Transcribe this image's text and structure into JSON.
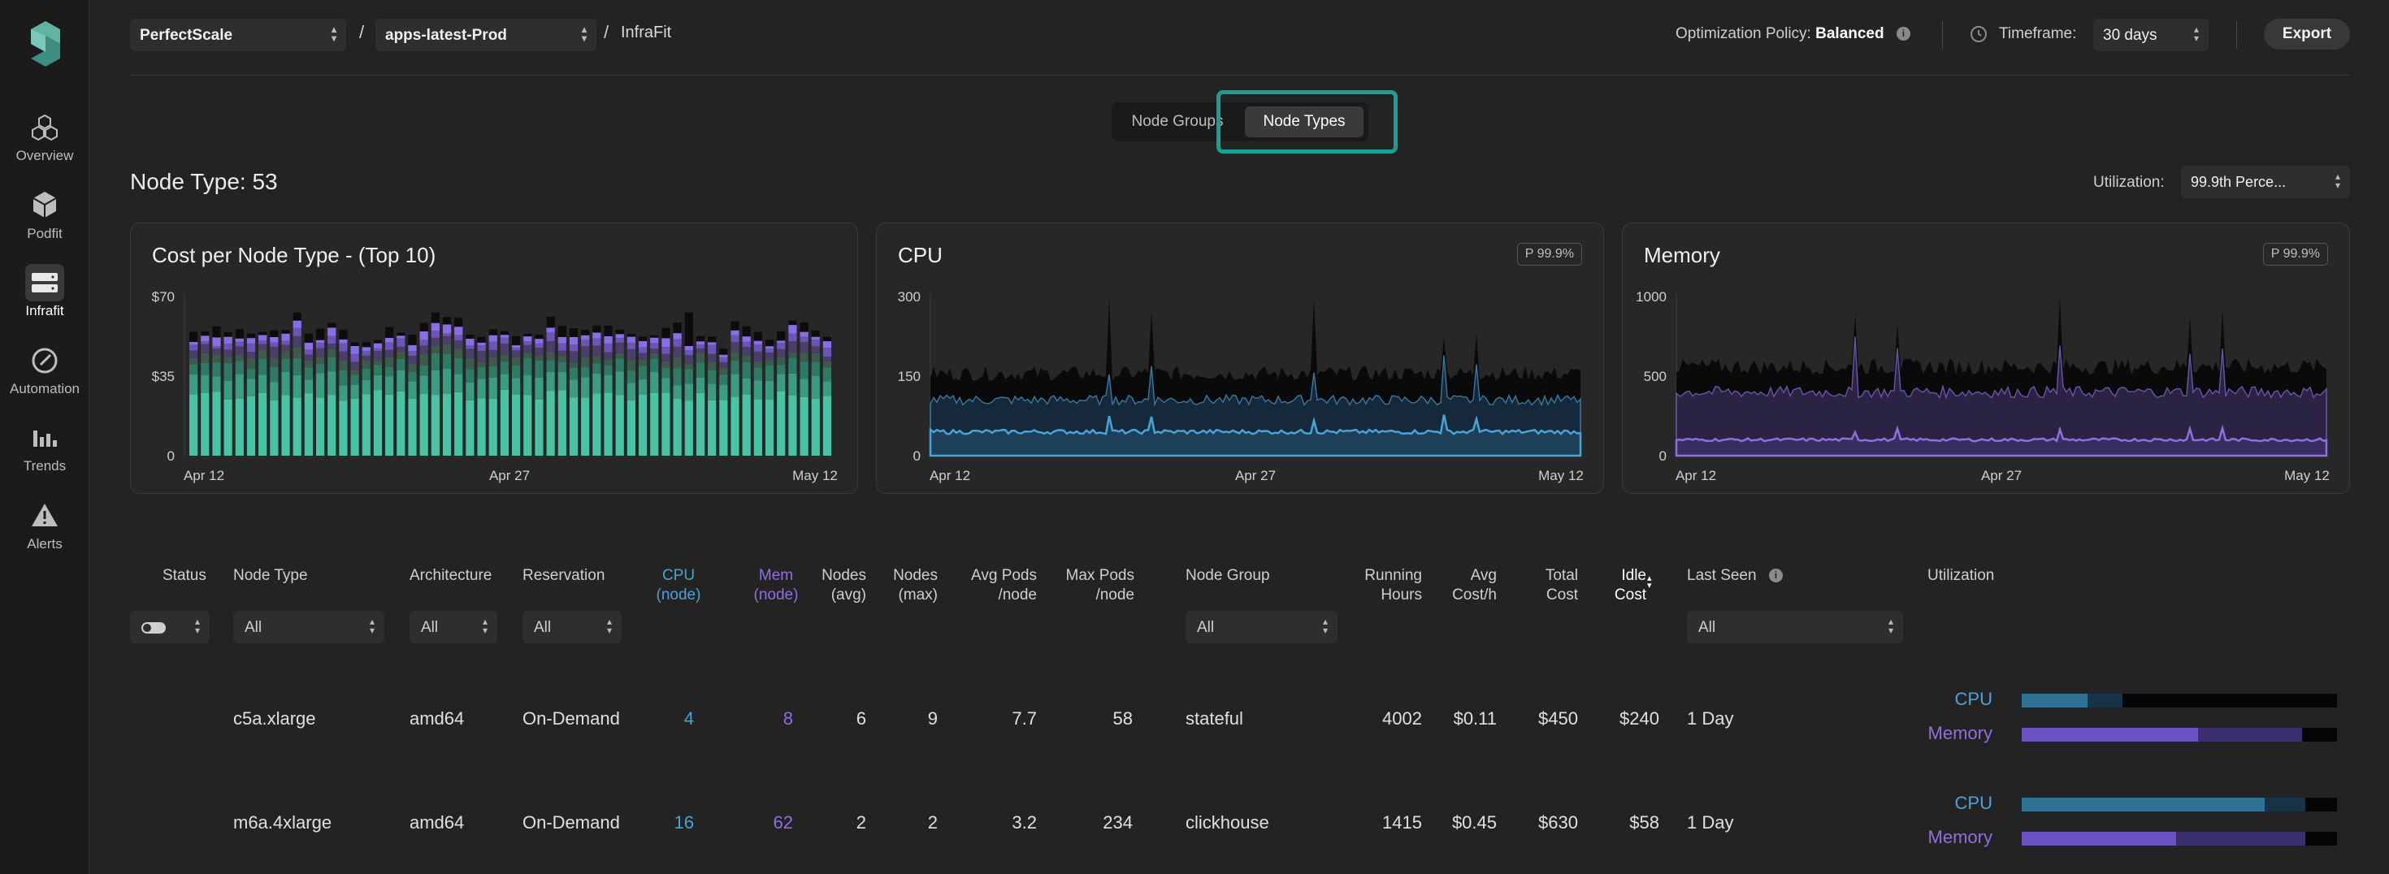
{
  "sidebar": {
    "items": [
      {
        "label": "Overview",
        "icon": "cubes-icon"
      },
      {
        "label": "Podfit",
        "icon": "cube-icon"
      },
      {
        "label": "Infrafit",
        "icon": "server-icon",
        "active": true
      },
      {
        "label": "Automation",
        "icon": "gauge-icon"
      },
      {
        "label": "Trends",
        "icon": "bar-chart-icon"
      },
      {
        "label": "Alerts",
        "icon": "warning-icon"
      }
    ]
  },
  "header": {
    "org": "PerfectScale",
    "cluster": "apps-latest-Prod",
    "separator": "/",
    "page": "InfraFit",
    "policy_label": "Optimization Policy:",
    "policy_value": "Balanced",
    "timeframe_label": "Timeframe:",
    "timeframe_value": "30 days",
    "export_label": "Export"
  },
  "toggle": {
    "options": [
      "Node Groups",
      "Node Types"
    ],
    "selected": "Node Types"
  },
  "summary": {
    "title": "Node Type: 53",
    "utilization_label": "Utilization:",
    "utilization_value": "99.9th Perce..."
  },
  "colors": {
    "accent": "#1b9f92",
    "cpu": "#4aa3d7",
    "memory": "#8f6fe0",
    "bar_cost": "#3db69c"
  },
  "chart_data": [
    {
      "type": "bar",
      "title": "Cost per Node Type - (Top 10)",
      "y_ticks": [
        "$70",
        "$35",
        "0"
      ],
      "ylim": [
        0,
        70
      ],
      "x_ticks": [
        "Apr 12",
        "Apr 27",
        "May 12"
      ],
      "stacked": true,
      "approx_total_per_bar": "≈38–60 daily"
    },
    {
      "type": "area",
      "title": "CPU",
      "badge": "P 99.9%",
      "y_ticks": [
        "300",
        "150",
        "0"
      ],
      "ylim": [
        0,
        300
      ],
      "x_ticks": [
        "Apr 12",
        "Apr 27",
        "May 12"
      ],
      "series": [
        {
          "role": "capacity",
          "approx_level": 155
        },
        {
          "role": "p99.9",
          "approx_level": 105
        },
        {
          "role": "usage",
          "approx_level": 45
        }
      ]
    },
    {
      "type": "area",
      "title": "Memory",
      "badge": "P 99.9%",
      "y_ticks": [
        "1000",
        "500",
        "0"
      ],
      "ylim": [
        0,
        1000
      ],
      "x_ticks": [
        "Apr 12",
        "Apr 27",
        "May 12"
      ],
      "series": [
        {
          "role": "capacity",
          "approx_level": 560
        },
        {
          "role": "p99.9",
          "approx_level": 400
        },
        {
          "role": "usage",
          "approx_level": 100
        }
      ]
    }
  ],
  "table": {
    "headers": {
      "status": "Status",
      "node_type": "Node Type",
      "architecture": "Architecture",
      "reservation": "Reservation",
      "cpu1": "CPU",
      "cpu2": "(node)",
      "mem1": "Mem",
      "mem2": "(node)",
      "nodes_avg1": "Nodes",
      "nodes_avg2": "(avg)",
      "nodes_max1": "Nodes",
      "nodes_max2": "(max)",
      "avg_pods1": "Avg Pods",
      "avg_pods2": "/node",
      "max_pods1": "Max Pods",
      "max_pods2": "/node",
      "node_group": "Node Group",
      "running1": "Running",
      "running2": "Hours",
      "avg_cost1": "Avg",
      "avg_cost2": "Cost/h",
      "total1": "Total",
      "total2": "Cost",
      "idle1": "Idle",
      "idle2": "Cost",
      "last_seen": "Last Seen",
      "utilization": "Utilization"
    },
    "filters": {
      "all": "All"
    },
    "rows": [
      {
        "node_type": "c5a.xlarge",
        "architecture": "amd64",
        "reservation": "On-Demand",
        "cpu": "4",
        "mem": "8",
        "nodes_avg": "6",
        "nodes_max": "9",
        "avg_pods": "7.7",
        "max_pods": "58",
        "node_group": "stateful",
        "running_hours": "4002",
        "avg_cost": "$0.11",
        "total_cost": "$450",
        "idle_cost": "$240",
        "last_seen": "1 Day",
        "cpu_label": "CPU",
        "mem_label": "Memory",
        "cpu_used": 0.21,
        "cpu_req": 0.32,
        "mem_used": 0.56,
        "mem_req": 0.89
      },
      {
        "node_type": "m6a.4xlarge",
        "architecture": "amd64",
        "reservation": "On-Demand",
        "cpu": "16",
        "mem": "62",
        "nodes_avg": "2",
        "nodes_max": "2",
        "avg_pods": "3.2",
        "max_pods": "234",
        "node_group": "clickhouse",
        "running_hours": "1415",
        "avg_cost": "$0.45",
        "total_cost": "$630",
        "idle_cost": "$58",
        "last_seen": "1 Day",
        "cpu_label": "CPU",
        "mem_label": "Memory",
        "cpu_used": 0.77,
        "cpu_req": 0.9,
        "mem_used": 0.49,
        "mem_req": 0.9
      }
    ]
  }
}
